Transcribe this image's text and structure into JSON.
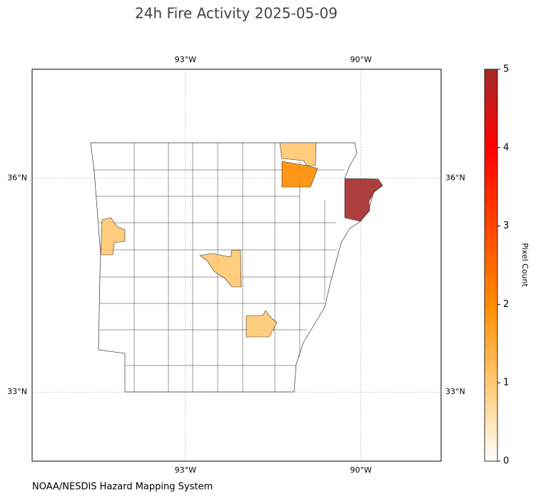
{
  "map_data": {
    "title": "24h Fire Activity 2025-05-09",
    "source": "NOAA/NESDIS Hazard Mapping System",
    "xlim": [
      -95.62,
      -88.63
    ],
    "ylim": [
      32.03,
      37.53
    ],
    "lon_ticks": [
      {
        "value": -93,
        "label": "93°W"
      },
      {
        "value": -90,
        "label": "90°W"
      }
    ],
    "lat_ticks": [
      {
        "value": 36,
        "label": "36°N"
      },
      {
        "value": 33,
        "label": "33°N"
      }
    ],
    "grid": true,
    "colorbar": {
      "label": "Pixel Count",
      "clim": [
        0,
        5
      ],
      "ticks": [
        0,
        1,
        2,
        3,
        4,
        5
      ],
      "colors": [
        "#ffffff",
        "#ffc870",
        "#ff8c00",
        "#ff4500",
        "#ff0000",
        "#a52a2a"
      ]
    },
    "fire_counties": {
      "values": [
        1,
        2,
        5,
        1,
        1,
        1
      ]
    }
  }
}
